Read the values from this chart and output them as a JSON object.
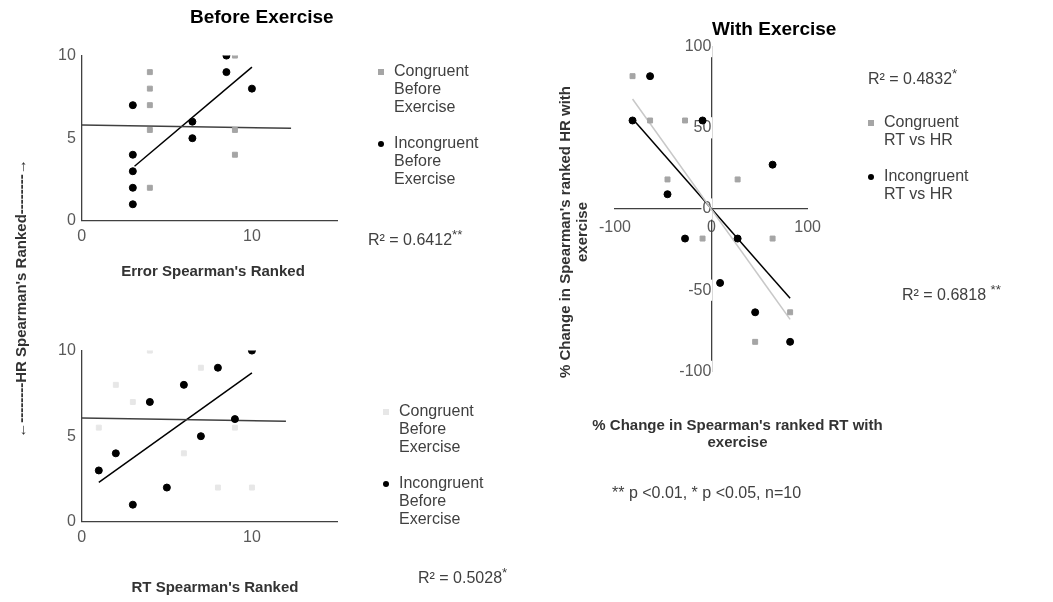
{
  "chart_data": [
    {
      "type": "scatter",
      "title": "Before Exercise",
      "xlabel": "Error Spearman's Ranked",
      "ylabel": "←--------HR Spearman's Ranked--------→",
      "xlim": [
        0,
        15
      ],
      "xticks": [
        0,
        10
      ],
      "ylim": [
        0,
        10
      ],
      "yticks": [
        0,
        5,
        10
      ],
      "grid": false,
      "legend": "right",
      "annotations": [
        "R² = 0.6412$^{**}$"
      ],
      "series": [
        {
          "name": "Congruent Before Exercise",
          "color": "#a5a5a5",
          "marker": "square",
          "x": [
            4,
            4,
            4,
            4,
            4,
            9,
            9,
            9
          ],
          "values": [
            9,
            8,
            7,
            5.5,
            2,
            10,
            5.5,
            4
          ]
        },
        {
          "name": "Incongruent Before Exercise",
          "color": "#000000",
          "marker": "circle",
          "x": [
            3,
            3,
            3,
            3,
            3,
            6.5,
            6.5,
            8.5,
            8.5,
            10
          ],
          "values": [
            7,
            4,
            3,
            2,
            1,
            6,
            5,
            10,
            9,
            8
          ]
        },
        {
          "type": "line",
          "color": "#404040",
          "x": [
            0,
            12.3
          ],
          "values": [
            5.8,
            5.6
          ]
        },
        {
          "type": "line",
          "color": "#000000",
          "x": [
            3.1,
            10
          ],
          "values": [
            3.3,
            9.3
          ]
        }
      ]
    },
    {
      "type": "scatter",
      "xlabel": "RT Spearman's Ranked",
      "xlim": [
        0,
        15
      ],
      "xticks": [
        0,
        10
      ],
      "ylim": [
        0,
        10
      ],
      "yticks": [
        0,
        5,
        10
      ],
      "grid": false,
      "legend": "right",
      "annotations": [
        "R² = 0.5028$^{*}$"
      ],
      "series": [
        {
          "name": "Congruent Before Exercise",
          "color": "#e7e7e7",
          "marker": "square",
          "x": [
            1,
            2,
            3,
            4,
            6,
            7,
            8,
            9,
            10
          ],
          "values": [
            5.5,
            8,
            7,
            10,
            4,
            9,
            2,
            5.5,
            2
          ]
        },
        {
          "name": "Incongruent Before Exercise",
          "color": "#000000",
          "marker": "circle",
          "x": [
            1,
            2,
            3,
            4,
            5,
            6,
            7,
            8,
            9,
            10
          ],
          "values": [
            3,
            4,
            1,
            7,
            2,
            8,
            5,
            9,
            6,
            10
          ]
        },
        {
          "type": "line",
          "color": "#404040",
          "x": [
            0,
            12
          ],
          "values": [
            6.07,
            5.87
          ]
        },
        {
          "type": "line",
          "color": "#000000",
          "x": [
            1,
            10
          ],
          "values": [
            2.3,
            8.7
          ]
        }
      ]
    },
    {
      "type": "scatter",
      "title": "With Exercise",
      "xlabel": "% Change in Spearman's ranked RT with exercise",
      "ylabel": "% Change in Spearman's ranked HR with exercise",
      "xlim": [
        -100,
        100
      ],
      "xticks": [
        -100,
        0,
        100
      ],
      "ylim": [
        -100,
        100
      ],
      "yticks": [
        -100,
        -50,
        0,
        50,
        100
      ],
      "grid": false,
      "legend": "right",
      "annotations": [
        "R² = 0.4832$^{*}$",
        "R² = 0.6818 $^{**}$",
        "** p <0.01, * p <0.05, n=10"
      ],
      "series": [
        {
          "name": "Congruent RT vs HR",
          "color": "#a5a5a5",
          "marker": "square",
          "x": [
            -81.8,
            -63.6,
            -27.3,
            -45.5,
            27.3,
            -9.1,
            63.6,
            81.8,
            45.5
          ],
          "values": [
            81.8,
            54.5,
            54.5,
            18.2,
            18.2,
            -18.2,
            -18.2,
            -63.6,
            -81.8
          ]
        },
        {
          "name": "Incongruent RT vs HR",
          "color": "#000000",
          "marker": "circle",
          "x": [
            -63.6,
            -81.8,
            -9.1,
            -45.5,
            -27.3,
            27.3,
            63.6,
            9.1,
            45.5,
            81.8
          ],
          "values": [
            81.8,
            54.5,
            54.5,
            9.1,
            -18.2,
            -18.2,
            27.3,
            -45.5,
            -63.6,
            -81.8
          ]
        },
        {
          "type": "line",
          "color": "#c8c8c8",
          "x": [
            -81.8,
            81.8
          ],
          "values": [
            67.7,
            -68
          ]
        },
        {
          "type": "line",
          "color": "#000000",
          "x": [
            -81.8,
            81.8
          ],
          "values": [
            55.5,
            -55
          ]
        }
      ]
    }
  ]
}
